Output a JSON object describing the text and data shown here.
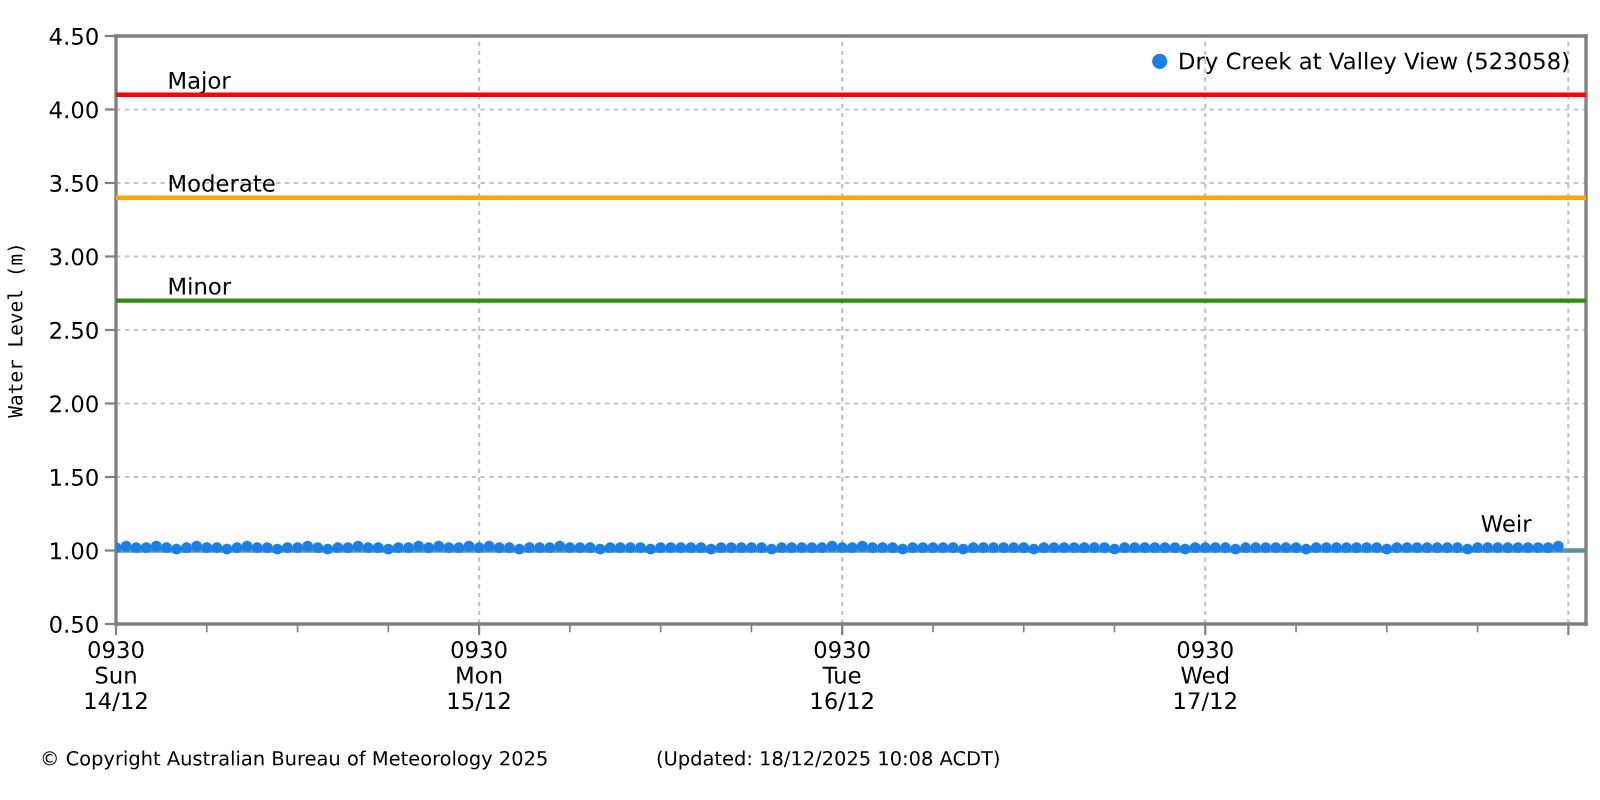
{
  "chart_data": {
    "type": "scatter",
    "ylabel": "Water Level (m)",
    "annotations": [
      "© Copyright Australian Bureau of Meteorology 2025",
      "(Updated: 18/12/2025 10:08 ACDT)"
    ],
    "x": [
      "2025-12-14T09:30",
      "2025-12-14T10:10",
      "2025-12-14T10:50",
      "2025-12-14T11:30",
      "2025-12-14T12:10",
      "2025-12-14T12:50",
      "2025-12-14T13:30",
      "2025-12-14T14:10",
      "2025-12-14T14:50",
      "2025-12-14T15:30",
      "2025-12-14T16:10",
      "2025-12-14T16:50",
      "2025-12-14T17:30",
      "2025-12-14T18:10",
      "2025-12-14T18:50",
      "2025-12-14T19:30",
      "2025-12-14T20:10",
      "2025-12-14T20:50",
      "2025-12-14T21:30",
      "2025-12-14T22:10",
      "2025-12-14T22:50",
      "2025-12-14T23:30",
      "2025-12-15T00:10",
      "2025-12-15T00:50",
      "2025-12-15T01:30",
      "2025-12-15T02:10",
      "2025-12-15T02:50",
      "2025-12-15T03:30",
      "2025-12-15T04:10",
      "2025-12-15T04:50",
      "2025-12-15T05:30",
      "2025-12-15T06:10",
      "2025-12-15T06:50",
      "2025-12-15T07:30",
      "2025-12-15T08:10",
      "2025-12-15T08:50",
      "2025-12-15T09:30",
      "2025-12-15T10:10",
      "2025-12-15T10:50",
      "2025-12-15T11:30",
      "2025-12-15T12:10",
      "2025-12-15T12:50",
      "2025-12-15T13:30",
      "2025-12-15T14:10",
      "2025-12-15T14:50",
      "2025-12-15T15:30",
      "2025-12-15T16:10",
      "2025-12-15T16:50",
      "2025-12-15T17:30",
      "2025-12-15T18:10",
      "2025-12-15T18:50",
      "2025-12-15T19:30",
      "2025-12-15T20:10",
      "2025-12-15T20:50",
      "2025-12-15T21:30",
      "2025-12-15T22:10",
      "2025-12-15T22:50",
      "2025-12-15T23:30",
      "2025-12-16T00:10",
      "2025-12-16T00:50",
      "2025-12-16T01:30",
      "2025-12-16T02:10",
      "2025-12-16T02:50",
      "2025-12-16T03:30",
      "2025-12-16T04:10",
      "2025-12-16T04:50",
      "2025-12-16T05:30",
      "2025-12-16T06:10",
      "2025-12-16T06:50",
      "2025-12-16T07:30",
      "2025-12-16T08:10",
      "2025-12-16T08:50",
      "2025-12-16T09:30",
      "2025-12-16T10:10",
      "2025-12-16T10:50",
      "2025-12-16T11:30",
      "2025-12-16T12:10",
      "2025-12-16T12:50",
      "2025-12-16T13:30",
      "2025-12-16T14:10",
      "2025-12-16T14:50",
      "2025-12-16T15:30",
      "2025-12-16T16:10",
      "2025-12-16T16:50",
      "2025-12-16T17:30",
      "2025-12-16T18:10",
      "2025-12-16T18:50",
      "2025-12-16T19:30",
      "2025-12-16T20:10",
      "2025-12-16T20:50",
      "2025-12-16T21:30",
      "2025-12-16T22:10",
      "2025-12-16T22:50",
      "2025-12-16T23:30",
      "2025-12-17T00:10",
      "2025-12-17T00:50",
      "2025-12-17T01:30",
      "2025-12-17T02:10",
      "2025-12-17T02:50",
      "2025-12-17T03:30",
      "2025-12-17T04:10",
      "2025-12-17T04:50",
      "2025-12-17T05:30",
      "2025-12-17T06:10",
      "2025-12-17T06:50",
      "2025-12-17T07:30",
      "2025-12-17T08:10",
      "2025-12-17T08:50",
      "2025-12-17T09:30",
      "2025-12-17T10:10",
      "2025-12-17T10:50",
      "2025-12-17T11:30",
      "2025-12-17T12:10",
      "2025-12-17T12:50",
      "2025-12-17T13:30",
      "2025-12-17T14:10",
      "2025-12-17T14:50",
      "2025-12-17T15:30",
      "2025-12-17T16:10",
      "2025-12-17T16:50",
      "2025-12-17T17:30",
      "2025-12-17T18:10",
      "2025-12-17T18:50",
      "2025-12-17T19:30",
      "2025-12-17T20:10",
      "2025-12-17T20:50",
      "2025-12-17T21:30",
      "2025-12-17T22:10",
      "2025-12-17T22:50",
      "2025-12-17T23:30",
      "2025-12-18T00:10",
      "2025-12-18T00:50",
      "2025-12-18T01:30",
      "2025-12-18T02:10",
      "2025-12-18T02:50",
      "2025-12-18T03:30",
      "2025-12-18T04:10",
      "2025-12-18T04:50",
      "2025-12-18T05:30",
      "2025-12-18T06:10",
      "2025-12-18T06:50",
      "2025-12-18T07:30",
      "2025-12-18T08:10",
      "2025-12-18T08:50"
    ],
    "series": [
      {
        "name": "Dry Creek at Valley View (523058)",
        "color": "#1a7fe6",
        "values": [
          1.02,
          1.03,
          1.02,
          1.02,
          1.03,
          1.02,
          1.01,
          1.02,
          1.03,
          1.02,
          1.02,
          1.01,
          1.02,
          1.03,
          1.02,
          1.02,
          1.01,
          1.02,
          1.02,
          1.03,
          1.02,
          1.01,
          1.02,
          1.02,
          1.03,
          1.02,
          1.02,
          1.01,
          1.02,
          1.02,
          1.03,
          1.02,
          1.03,
          1.02,
          1.02,
          1.03,
          1.02,
          1.03,
          1.02,
          1.02,
          1.01,
          1.02,
          1.02,
          1.02,
          1.03,
          1.02,
          1.02,
          1.02,
          1.01,
          1.02,
          1.02,
          1.02,
          1.02,
          1.01,
          1.02,
          1.02,
          1.02,
          1.02,
          1.02,
          1.01,
          1.02,
          1.02,
          1.02,
          1.02,
          1.02,
          1.01,
          1.02,
          1.02,
          1.02,
          1.02,
          1.02,
          1.03,
          1.02,
          1.02,
          1.03,
          1.02,
          1.02,
          1.02,
          1.01,
          1.02,
          1.02,
          1.02,
          1.02,
          1.02,
          1.01,
          1.02,
          1.02,
          1.02,
          1.02,
          1.02,
          1.02,
          1.01,
          1.02,
          1.02,
          1.02,
          1.02,
          1.02,
          1.02,
          1.02,
          1.01,
          1.02,
          1.02,
          1.02,
          1.02,
          1.02,
          1.02,
          1.01,
          1.02,
          1.02,
          1.02,
          1.02,
          1.01,
          1.02,
          1.02,
          1.02,
          1.02,
          1.02,
          1.02,
          1.01,
          1.02,
          1.02,
          1.02,
          1.02,
          1.02,
          1.02,
          1.02,
          1.01,
          1.02,
          1.02,
          1.02,
          1.02,
          1.02,
          1.02,
          1.02,
          1.01,
          1.02,
          1.02,
          1.02,
          1.02,
          1.02,
          1.02,
          1.02,
          1.02,
          1.03
        ]
      }
    ],
    "marker": "circle",
    "xlim": [
      "2025-12-14T09:30",
      "2025-12-18T10:40"
    ],
    "xticks": [
      {
        "value": "2025-12-14T09:30",
        "label": "0930\nSun\n14/12"
      },
      {
        "value": "2025-12-15T09:30",
        "label": "0930\nMon\n15/12"
      },
      {
        "value": "2025-12-16T09:30",
        "label": "0930\nTue\n16/12"
      },
      {
        "value": "2025-12-17T09:30",
        "label": "0930\nWed\n17/12"
      },
      {
        "value": "2025-12-18T09:30",
        "label": null
      }
    ],
    "ylim": [
      0.5,
      4.5
    ],
    "yticks": [
      {
        "value": 0.5,
        "label": "0.50"
      },
      {
        "value": 1.0,
        "label": "1.00"
      },
      {
        "value": 1.5,
        "label": "1.50"
      },
      {
        "value": 2.0,
        "label": "2.00"
      },
      {
        "value": 2.5,
        "label": "2.50"
      },
      {
        "value": 3.0,
        "label": "3.00"
      },
      {
        "value": 3.5,
        "label": "3.50"
      },
      {
        "value": 4.0,
        "label": "4.00"
      },
      {
        "value": 4.5,
        "label": "4.50"
      }
    ],
    "ref_lines": [
      {
        "axis": "y",
        "value": 4.1,
        "label": "Major",
        "color": "#ff0000",
        "line_style": "solid"
      },
      {
        "axis": "y",
        "value": 3.4,
        "label": "Moderate",
        "color": "#ffa500",
        "line_style": "solid"
      },
      {
        "axis": "y",
        "value": 2.7,
        "label": "Minor",
        "color": "#2e8b0e",
        "line_style": "solid"
      },
      {
        "axis": "y",
        "value": 1.0,
        "label": "Weir",
        "color": "#5f8f9c",
        "line_style": "solid"
      }
    ],
    "grid": true,
    "legend": "top right"
  }
}
